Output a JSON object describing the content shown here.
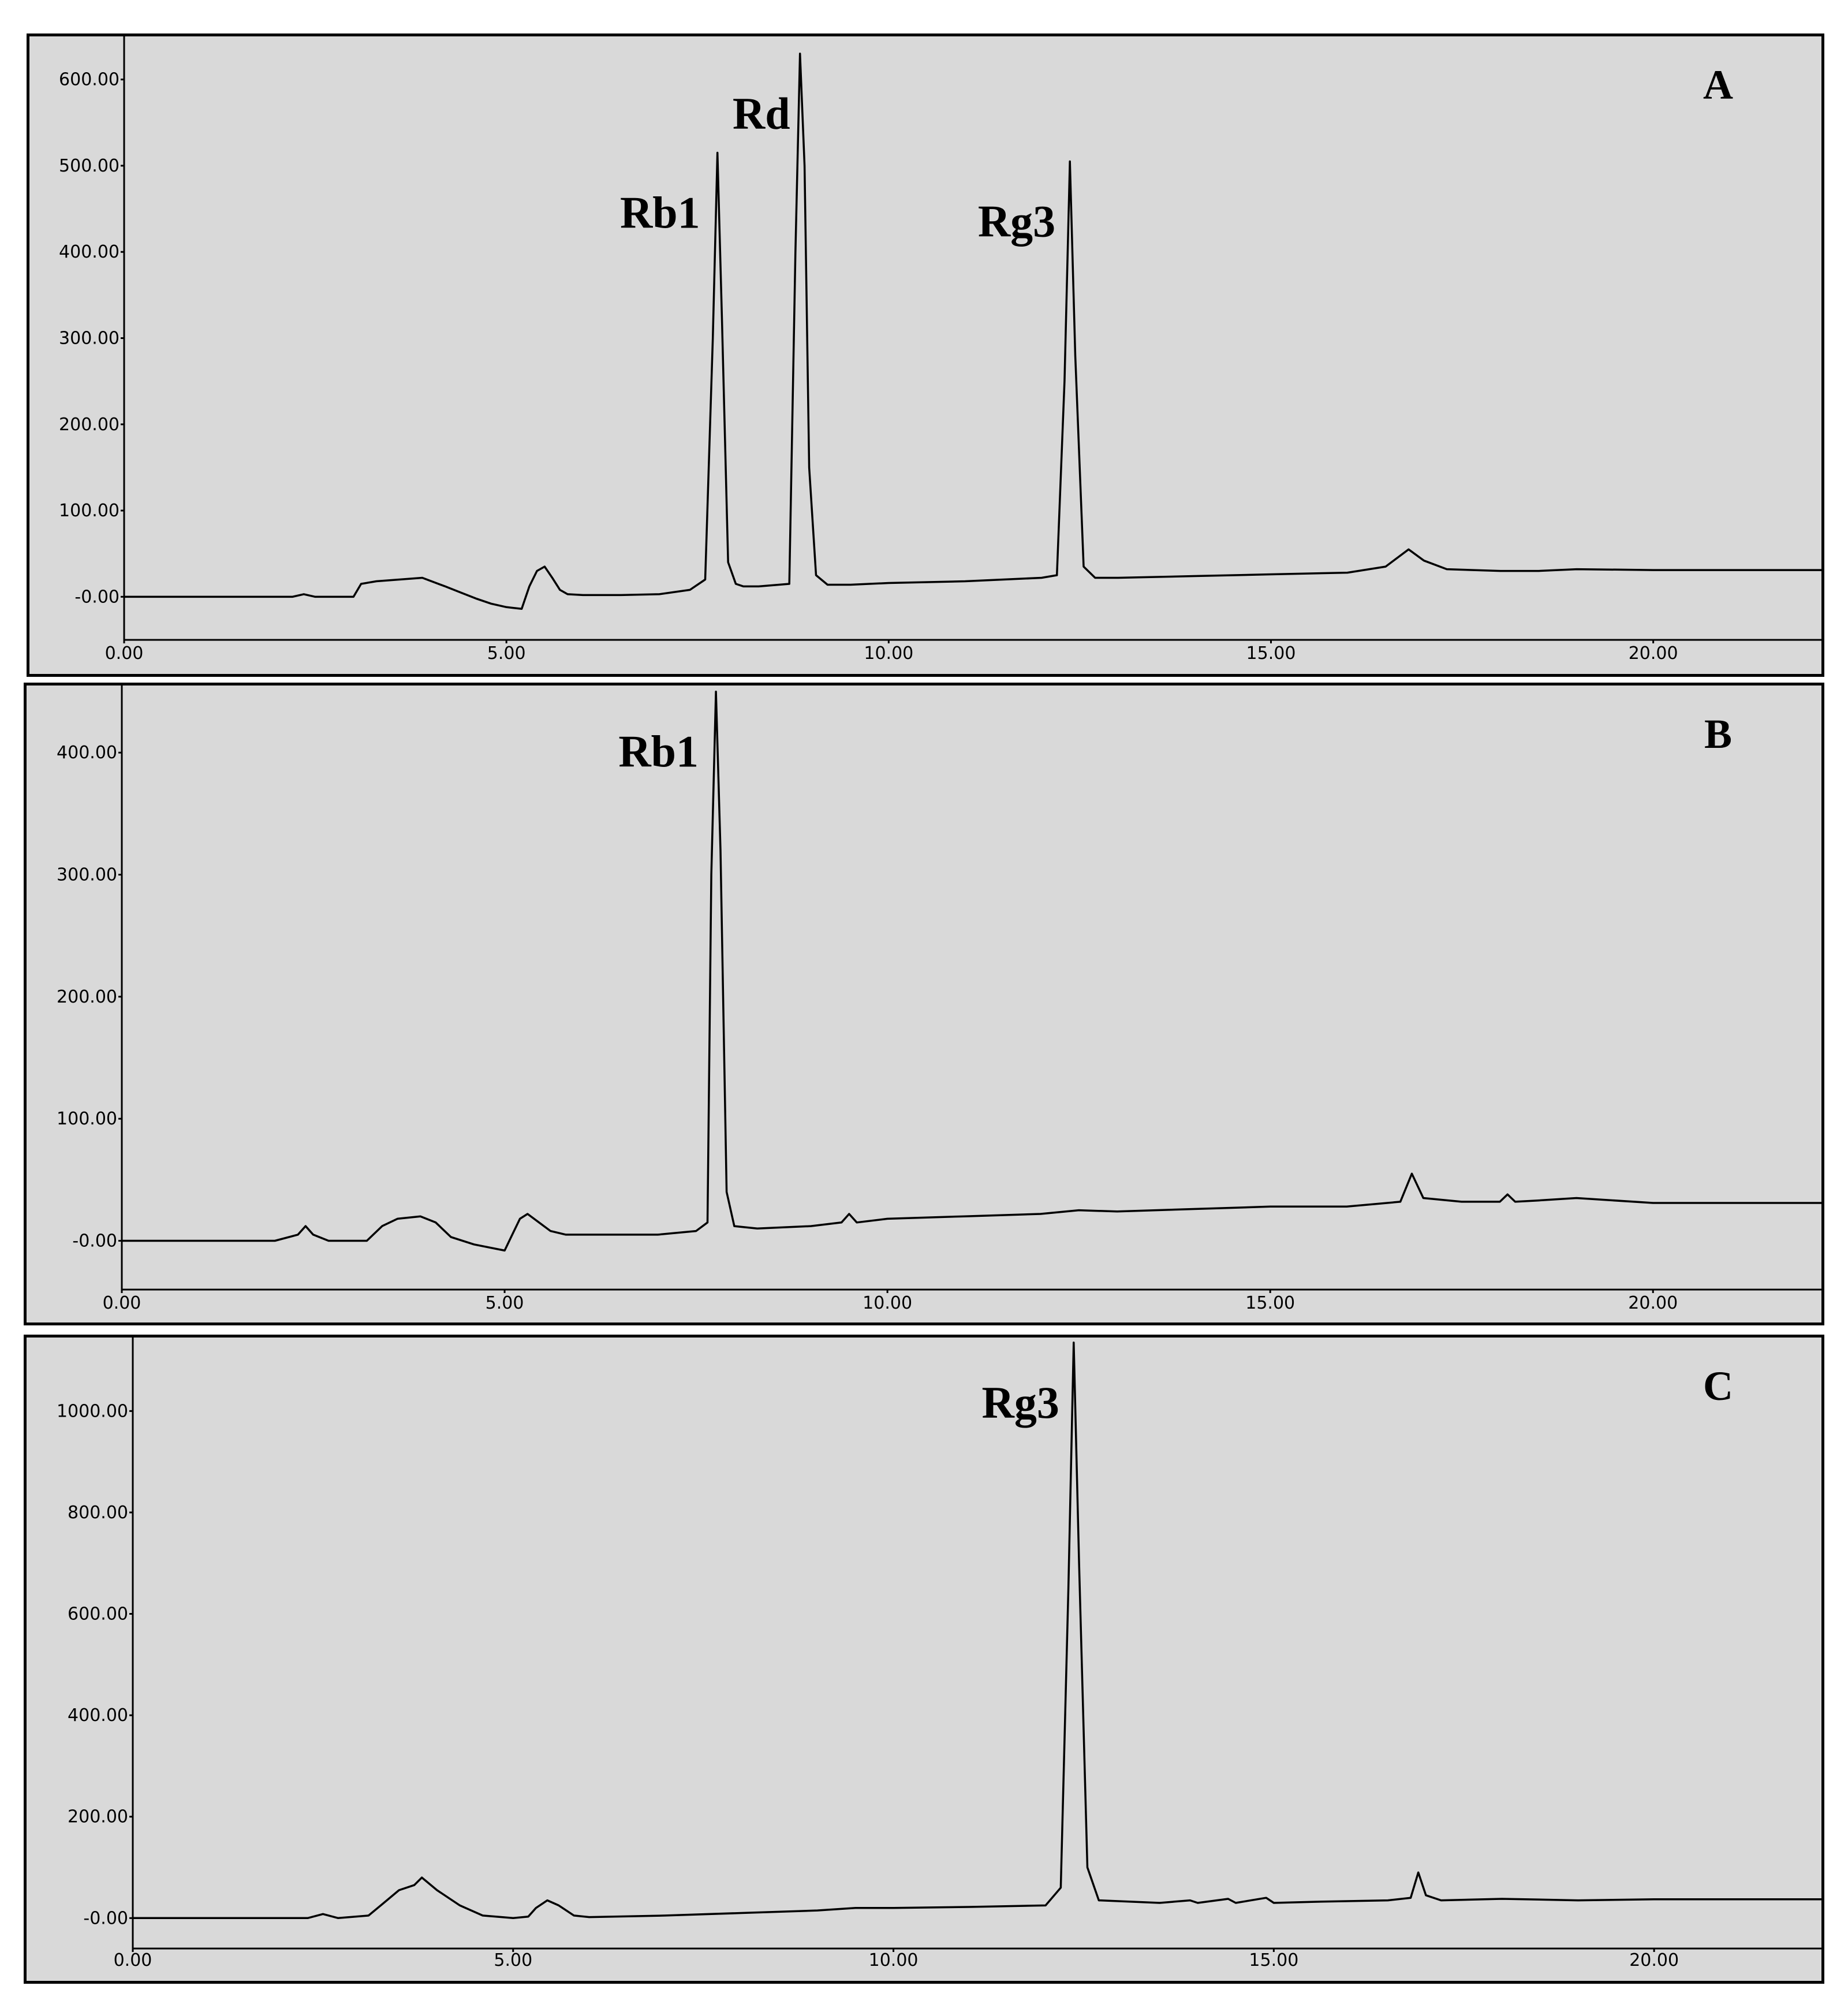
{
  "chart_data": [
    {
      "type": "line",
      "panel_label": "A",
      "xlim": [
        0,
        22.2
      ],
      "ylim": [
        -50,
        650
      ],
      "x_ticks": [
        {
          "value": 0,
          "label": "0.00"
        },
        {
          "value": 5,
          "label": "5.00"
        },
        {
          "value": 10,
          "label": "10.00"
        },
        {
          "value": 15,
          "label": "15.00"
        },
        {
          "value": 20,
          "label": "20.00"
        }
      ],
      "y_ticks": [
        {
          "value": 0,
          "label": "-0.00"
        },
        {
          "value": 100,
          "label": "100.00"
        },
        {
          "value": 200,
          "label": "200.00"
        },
        {
          "value": 300,
          "label": "300.00"
        },
        {
          "value": 400,
          "label": "400.00"
        },
        {
          "value": 500,
          "label": "500.00"
        },
        {
          "value": 600,
          "label": "600.00"
        }
      ],
      "peak_labels": [
        {
          "text": "Rb1",
          "x": 7.76,
          "y": 515
        },
        {
          "text": "Rd",
          "x": 8.9,
          "y": 630
        },
        {
          "text": "Rg3",
          "x": 12.37,
          "y": 505
        }
      ],
      "series": [
        {
          "x": [
            0,
            2.2,
            2.35,
            2.5,
            3.0,
            3.1,
            3.3,
            3.6,
            3.9,
            4.2,
            4.4,
            4.6,
            4.8,
            5.0,
            5.2,
            5.3,
            5.4,
            5.5,
            5.6,
            5.7,
            5.8,
            6.0,
            6.5,
            7.0,
            7.4,
            7.6,
            7.7,
            7.76,
            7.82,
            7.9,
            8.0,
            8.1,
            8.3,
            8.7,
            8.78,
            8.84,
            8.9,
            8.96,
            9.05,
            9.2,
            9.5,
            10.0,
            11.0,
            11.5,
            12.0,
            12.2,
            12.3,
            12.37,
            12.44,
            12.55,
            12.7,
            13.0,
            14.0,
            15.0,
            16.0,
            16.5,
            16.8,
            17.0,
            17.3,
            18.0,
            18.5,
            19.0,
            20.0,
            21.0,
            22.2
          ],
          "y": [
            0,
            0,
            3,
            0,
            0,
            15,
            18,
            20,
            22,
            12,
            5,
            -2,
            -8,
            -12,
            -14,
            12,
            30,
            35,
            22,
            8,
            3,
            2,
            2,
            3,
            8,
            20,
            300,
            515,
            320,
            40,
            15,
            12,
            12,
            15,
            400,
            630,
            500,
            150,
            25,
            14,
            14,
            16,
            18,
            20,
            22,
            25,
            250,
            505,
            280,
            35,
            22,
            22,
            24,
            26,
            28,
            35,
            55,
            42,
            32,
            30,
            30,
            32,
            31,
            31,
            31
          ]
        }
      ]
    },
    {
      "type": "line",
      "panel_label": "B",
      "xlim": [
        0,
        22.2
      ],
      "ylim": [
        -40,
        455
      ],
      "x_ticks": [
        {
          "value": 0,
          "label": "0.00"
        },
        {
          "value": 5,
          "label": "5.00"
        },
        {
          "value": 10,
          "label": "10.00"
        },
        {
          "value": 15,
          "label": "15.00"
        },
        {
          "value": 20,
          "label": "20.00"
        }
      ],
      "y_ticks": [
        {
          "value": 0,
          "label": "-0.00"
        },
        {
          "value": 100,
          "label": "100.00"
        },
        {
          "value": 200,
          "label": "200.00"
        },
        {
          "value": 300,
          "label": "300.00"
        },
        {
          "value": 400,
          "label": "400.00"
        }
      ],
      "peak_labels": [
        {
          "text": "Rb1",
          "x": 7.76,
          "y": 450
        }
      ],
      "series": [
        {
          "x": [
            0,
            2.0,
            2.3,
            2.4,
            2.5,
            2.7,
            3.2,
            3.4,
            3.6,
            3.9,
            4.1,
            4.3,
            4.6,
            5.0,
            5.1,
            5.2,
            5.3,
            5.45,
            5.6,
            5.8,
            6.0,
            7.0,
            7.5,
            7.65,
            7.7,
            7.76,
            7.82,
            7.9,
            8.0,
            8.3,
            9.0,
            9.4,
            9.5,
            9.6,
            10.0,
            11.0,
            12.0,
            12.5,
            13.0,
            14.0,
            15.0,
            16.0,
            16.7,
            16.85,
            17.0,
            17.5,
            18.0,
            18.1,
            18.2,
            18.5,
            19.0,
            20.0,
            22.2
          ],
          "y": [
            0,
            0,
            5,
            12,
            5,
            0,
            0,
            12,
            18,
            20,
            15,
            3,
            -3,
            -8,
            5,
            18,
            22,
            15,
            8,
            5,
            5,
            5,
            8,
            15,
            300,
            450,
            320,
            40,
            12,
            10,
            12,
            15,
            22,
            15,
            18,
            20,
            22,
            25,
            24,
            26,
            28,
            28,
            32,
            55,
            35,
            32,
            32,
            38,
            32,
            33,
            35,
            31,
            31
          ]
        }
      ]
    },
    {
      "type": "line",
      "panel_label": "C",
      "xlim": [
        0,
        22.2
      ],
      "ylim": [
        -60,
        1145
      ],
      "x_ticks": [
        {
          "value": 0,
          "label": "0.00"
        },
        {
          "value": 5,
          "label": "5.00"
        },
        {
          "value": 10,
          "label": "10.00"
        },
        {
          "value": 15,
          "label": "15.00"
        },
        {
          "value": 20,
          "label": "20.00"
        }
      ],
      "y_ticks": [
        {
          "value": 0,
          "label": "-0.00"
        },
        {
          "value": 200,
          "label": "200.00"
        },
        {
          "value": 400,
          "label": "400.00"
        },
        {
          "value": 600,
          "label": "600.00"
        },
        {
          "value": 800,
          "label": "800.00"
        },
        {
          "value": 1000,
          "label": "1000.00"
        }
      ],
      "peak_labels": [
        {
          "text": "Rg3",
          "x": 12.37,
          "y": 1135
        }
      ],
      "series": [
        {
          "x": [
            0,
            2.3,
            2.5,
            2.7,
            3.1,
            3.3,
            3.5,
            3.7,
            3.8,
            4.0,
            4.3,
            4.6,
            5.0,
            5.2,
            5.3,
            5.45,
            5.6,
            5.8,
            6.0,
            7.0,
            8.0,
            9.0,
            9.5,
            10.0,
            11.0,
            12.0,
            12.2,
            12.3,
            12.37,
            12.44,
            12.55,
            12.7,
            13.5,
            13.9,
            14.0,
            14.4,
            14.5,
            14.9,
            15.0,
            15.5,
            16.5,
            16.8,
            16.9,
            17.0,
            17.2,
            18.0,
            19.0,
            20.0,
            22.2
          ],
          "y": [
            0,
            0,
            8,
            0,
            5,
            30,
            55,
            65,
            80,
            55,
            25,
            5,
            0,
            3,
            20,
            35,
            25,
            5,
            2,
            5,
            10,
            15,
            20,
            20,
            22,
            25,
            60,
            650,
            1135,
            700,
            100,
            35,
            30,
            35,
            30,
            38,
            30,
            40,
            30,
            32,
            35,
            40,
            90,
            45,
            35,
            38,
            35,
            37,
            37
          ]
        }
      ]
    }
  ]
}
